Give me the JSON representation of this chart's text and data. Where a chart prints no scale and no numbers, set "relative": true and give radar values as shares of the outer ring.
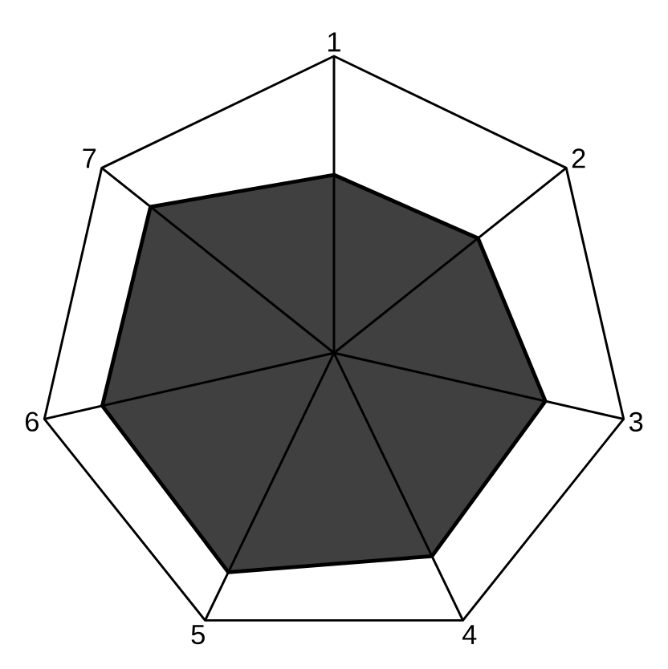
{
  "chart_data": {
    "type": "radar",
    "relative": true,
    "categories": [
      "1",
      "2",
      "3",
      "4",
      "5",
      "6",
      "7"
    ],
    "series": [
      {
        "color": "#404040",
        "values": [
          0.6,
          0.62,
          0.73,
          0.76,
          0.82,
          0.8,
          0.79
        ]
      }
    ]
  }
}
